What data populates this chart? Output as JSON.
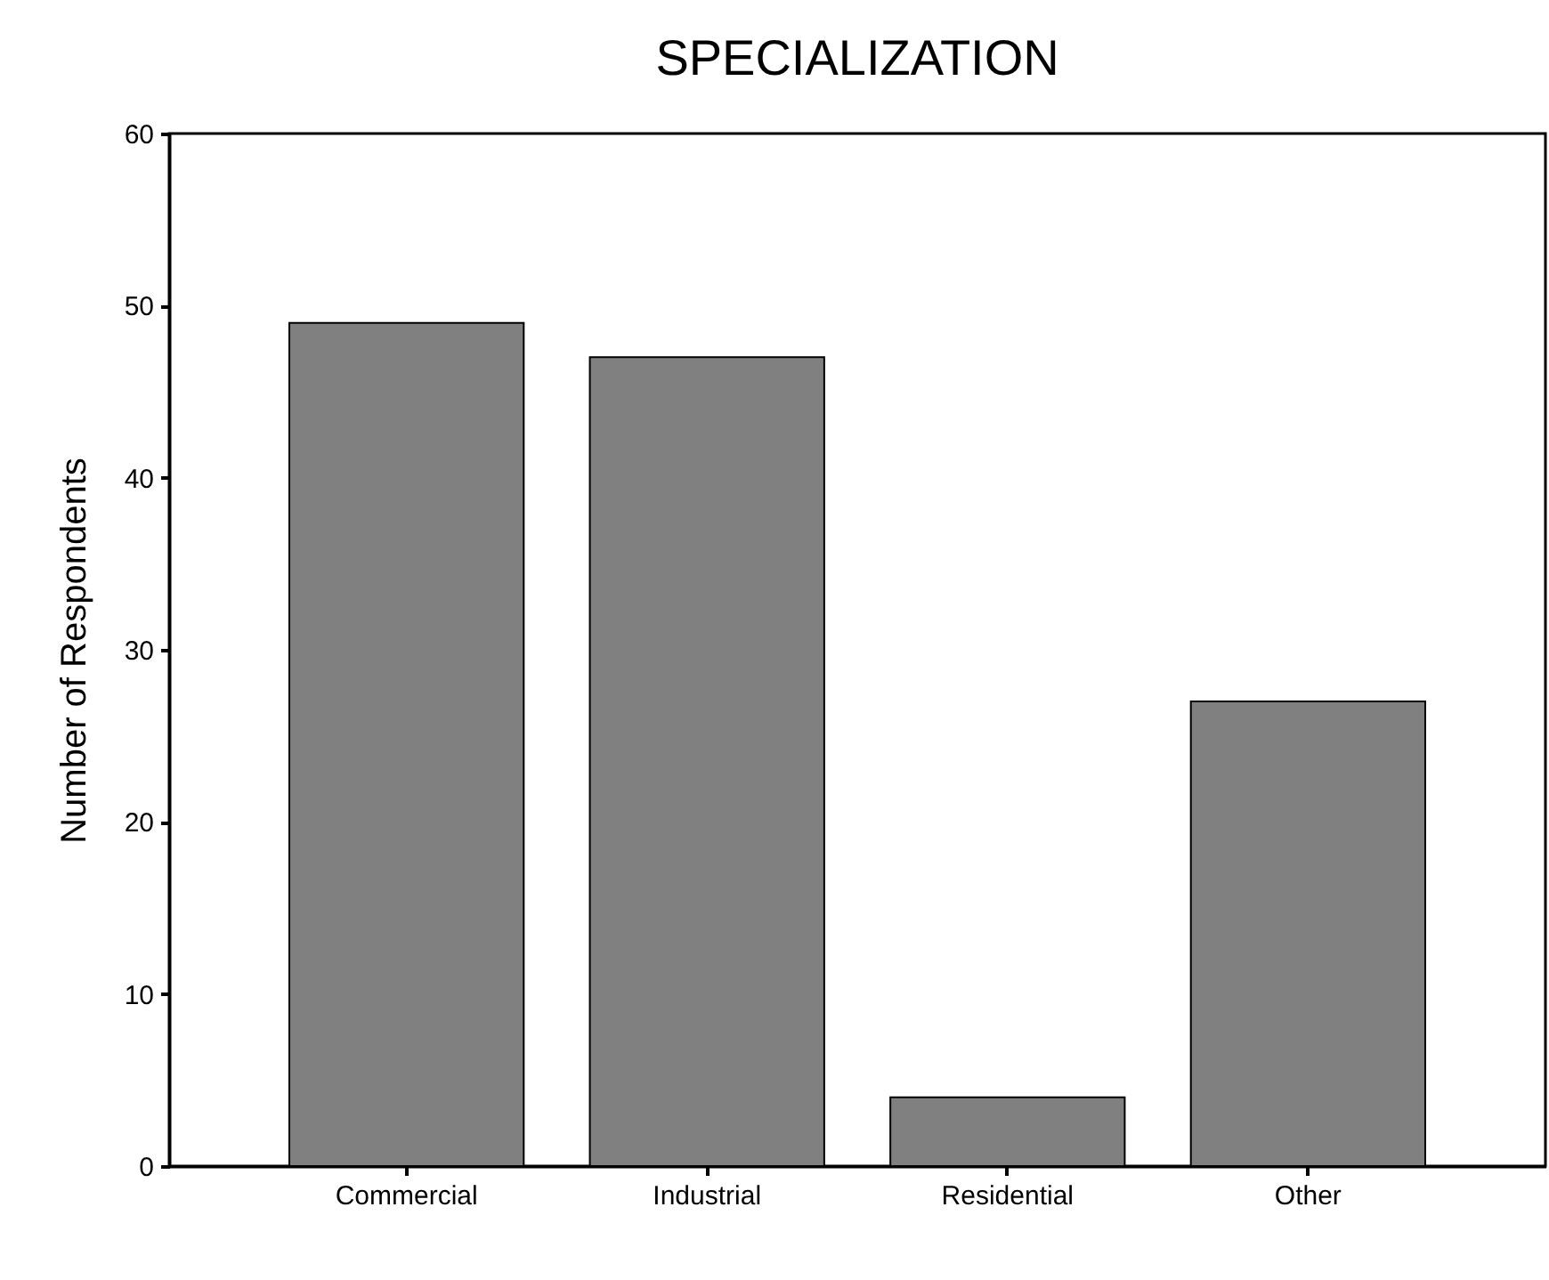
{
  "chart_data": {
    "type": "bar",
    "title": "SPECIALIZATION",
    "ylabel": "Number of Respondents",
    "categories": [
      "Commercial",
      "Industrial",
      "Residential",
      "Other"
    ],
    "values": [
      49,
      47,
      4,
      27
    ],
    "color": "#808080",
    "ylim": [
      0,
      60
    ],
    "yticks": [
      0,
      10,
      20,
      30,
      40,
      50,
      60
    ],
    "grid": false
  }
}
